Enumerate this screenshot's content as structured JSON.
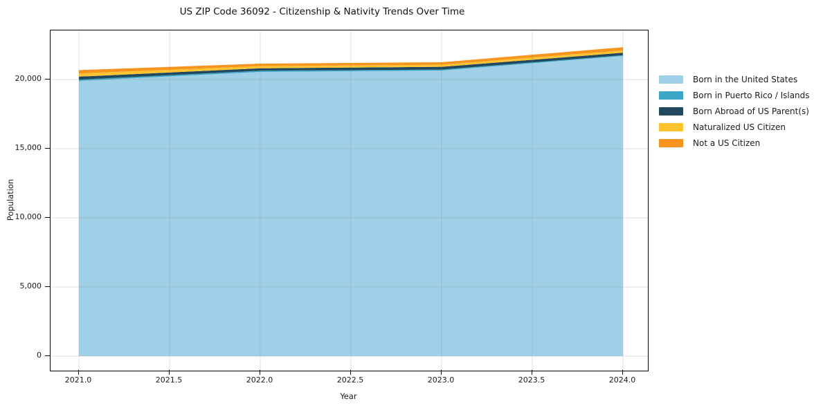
{
  "chart_data": {
    "type": "area",
    "stacked": true,
    "title": "US ZIP Code 36092 - Citizenship & Nativity Trends Over Time",
    "xlabel": "Year",
    "ylabel": "Population",
    "x": [
      2021,
      2022,
      2023,
      2024
    ],
    "series": [
      {
        "name": "Born in the United States",
        "color": "#9fd0e8",
        "values": [
          19900,
          20550,
          20650,
          21700
        ]
      },
      {
        "name": "Born in Puerto Rico / Islands",
        "color": "#3ba6c6",
        "values": [
          90,
          90,
          70,
          60
        ]
      },
      {
        "name": "Born Abroad of US Parent(s)",
        "color": "#20485e",
        "values": [
          220,
          170,
          200,
          180
        ]
      },
      {
        "name": "Naturalized US Citizen",
        "color": "#fdc330",
        "values": [
          230,
          160,
          150,
          170
        ]
      },
      {
        "name": "Not a US Citizen",
        "color": "#f7941e",
        "values": [
          240,
          180,
          180,
          225
        ]
      }
    ],
    "xticks": {
      "values": [
        2021.0,
        2021.5,
        2022.0,
        2022.5,
        2023.0,
        2023.5,
        2024.0
      ],
      "labels": [
        "2021.0",
        "2021.5",
        "2022.0",
        "2022.5",
        "2023.0",
        "2023.5",
        "2024.0"
      ]
    },
    "yticks": {
      "values": [
        0,
        5000,
        10000,
        15000,
        20000
      ],
      "labels": [
        "0",
        "5,000",
        "10,000",
        "15,000",
        "20,000"
      ]
    },
    "xlim": [
      2020.8435,
      2024.1374
    ],
    "ylim": [
      -1050,
      23550
    ],
    "grid": true,
    "legend_position": "right",
    "grid_color": "#e3e3e3",
    "spine_color": "#000000"
  }
}
